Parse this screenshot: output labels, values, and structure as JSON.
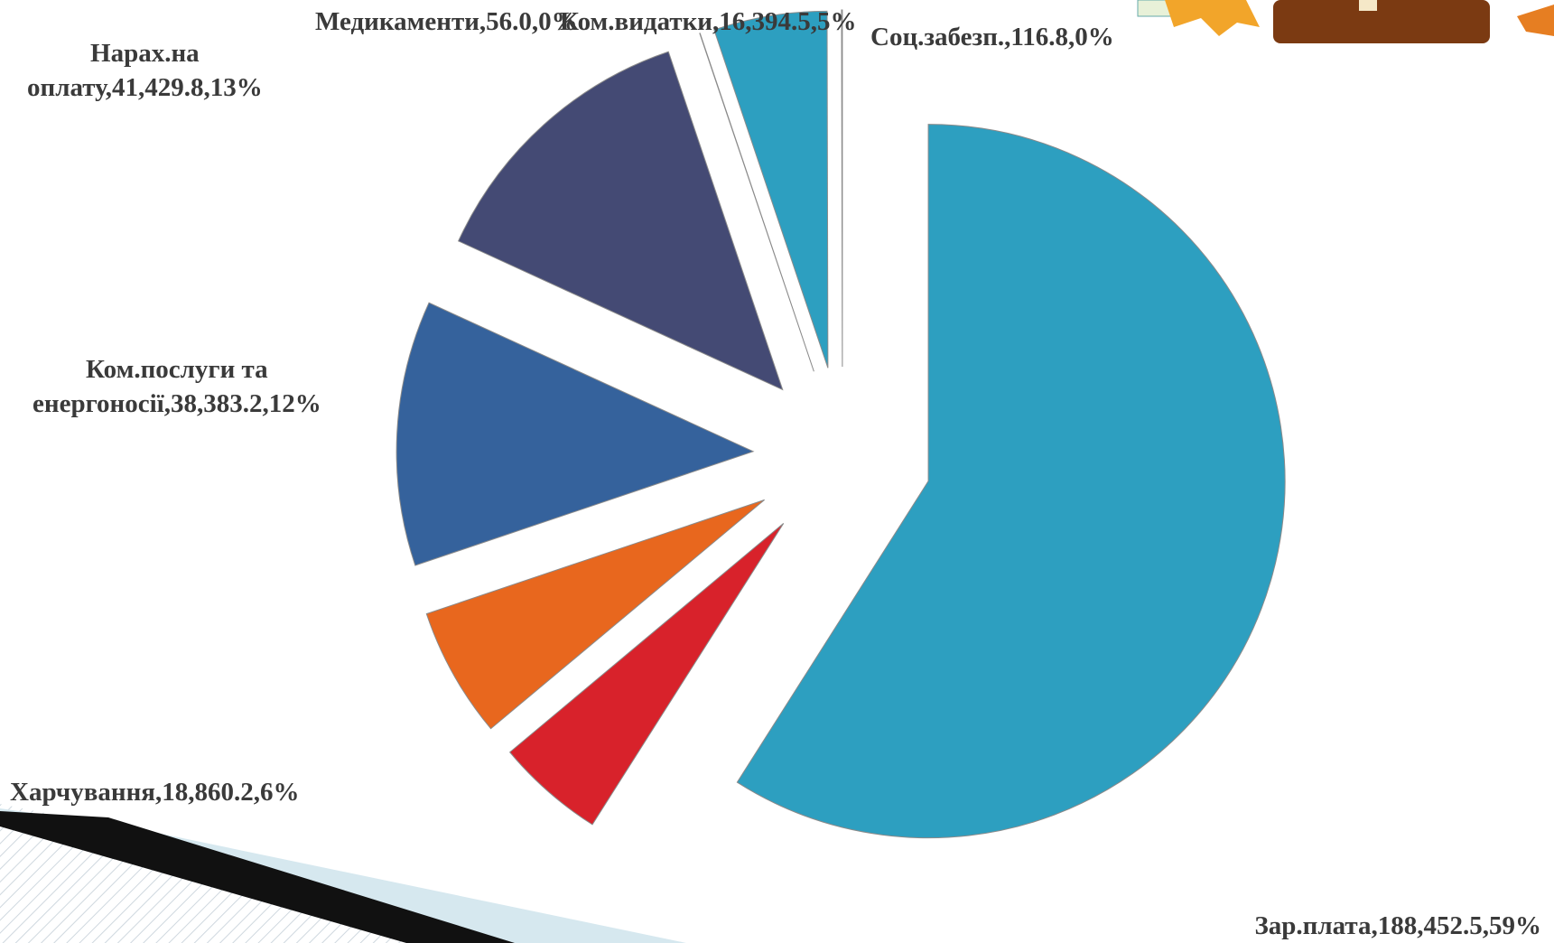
{
  "chart_data": {
    "type": "pie",
    "values": [
      188452.5,
      15700,
      18860.2,
      38383.2,
      41429.8,
      56,
      16394.5,
      116.8
    ],
    "value_labels": [
      "Зар.плата,188,452.5,59%",
      null,
      "Харчування,18,860.2,6%",
      "Ком.послуги та\nенергоносії,38,383.2,12%",
      "Нарах.на\nоплату,41,429.8,13%",
      "Медикаменти,56.0,0%",
      "Ком.видатки,16,394.5,5%",
      "Соц.забезп.,116.8,0%"
    ],
    "colors": [
      "#2d9fc0",
      "#d8222b",
      "#e8671e",
      "#35629c",
      "#444a74",
      "#2d9fc0",
      "#2d9fc0",
      "#2d9fc0"
    ]
  }
}
